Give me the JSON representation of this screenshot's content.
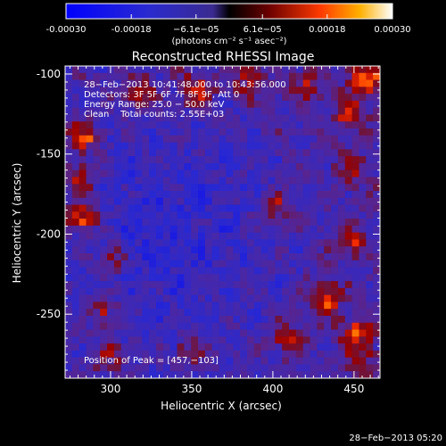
{
  "chart_data": {
    "type": "heatmap",
    "title": "Reconstructed RHESSI Image",
    "xlabel": "Heliocentric X (arcsec)",
    "ylabel": "Heliocentric Y (arcsec)",
    "xlim": [
      272,
      466
    ],
    "ylim": [
      -290,
      -95
    ],
    "x_ticks": [
      300,
      350,
      400,
      450
    ],
    "y_ticks": [
      -100,
      -150,
      -200,
      -250
    ],
    "colorbar": {
      "range": [
        -0.0003,
        0.0003
      ],
      "tick_values": [
        -0.0003,
        -0.00018,
        -6.1e-05,
        6.1e-05,
        0.00018,
        0.0003
      ],
      "tick_labels": [
        "-0.00030",
        "-0.00018",
        "−6.1e−05",
        "6.1e−05",
        "0.00018",
        "0.00030"
      ],
      "unit_label": "(photons cm⁻² s⁻¹ asec⁻²)"
    },
    "annotations": [
      "28−Feb−2013 10:41:48.000 to 10:43:56.000",
      "Detectors: 3F 5F 6F 7F 8F 9F, Att 0",
      "Energy Range: 25.0 − 50.0 keV",
      "Clean    Total counts: 2.55E+03"
    ],
    "peak_label": "Position of Peak = [457,−103]",
    "peak": [
      457,
      -103
    ],
    "grid_shape": [
      45,
      45
    ],
    "bright_sources": [
      {
        "x": 283,
        "y": -140,
        "value": 0.00024
      },
      {
        "x": 281,
        "y": -165,
        "value": 0.00016
      },
      {
        "x": 283,
        "y": -190,
        "value": 0.0003
      },
      {
        "x": 300,
        "y": -215,
        "value": 0.00018
      },
      {
        "x": 296,
        "y": -248,
        "value": 0.00016
      },
      {
        "x": 299,
        "y": -276,
        "value": 0.00014
      },
      {
        "x": 318,
        "y": -113,
        "value": 0.0002
      },
      {
        "x": 352,
        "y": -110,
        "value": 0.00022
      },
      {
        "x": 385,
        "y": -104,
        "value": 0.00016
      },
      {
        "x": 420,
        "y": -106,
        "value": 0.00015
      },
      {
        "x": 457,
        "y": -103,
        "value": 0.0003
      },
      {
        "x": 447,
        "y": -125,
        "value": 0.00016
      },
      {
        "x": 402,
        "y": -185,
        "value": 0.00016
      },
      {
        "x": 448,
        "y": -160,
        "value": 0.00012
      },
      {
        "x": 448,
        "y": -205,
        "value": 0.00016
      },
      {
        "x": 432,
        "y": -240,
        "value": 0.00026
      },
      {
        "x": 452,
        "y": -262,
        "value": 0.0002
      },
      {
        "x": 408,
        "y": -265,
        "value": 0.00016
      },
      {
        "x": 350,
        "y": -272,
        "value": 0.00014
      },
      {
        "x": 455,
        "y": -280,
        "value": 0.00012
      }
    ]
  },
  "footer": {
    "timestamp": "28−Feb−2013 05:20"
  }
}
